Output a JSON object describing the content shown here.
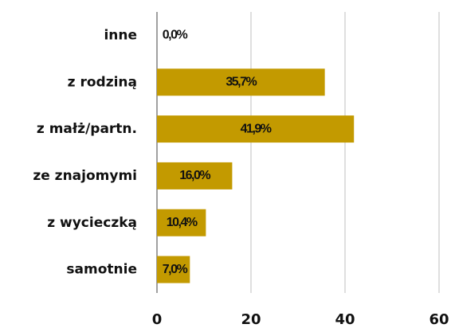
{
  "chart_data": {
    "type": "barh",
    "categories": [
      "inne",
      "z rodziną",
      "z małż/partn.",
      "ze znajomymi",
      "z wycieczką",
      "samotnie"
    ],
    "values": [
      0.0,
      35.7,
      41.9,
      16.0,
      10.4,
      7.0
    ],
    "value_labels": [
      "0,0%",
      "35,7%",
      "41,9%",
      "16,0%",
      "10,4%",
      "7,0%"
    ],
    "color": "#c39a00",
    "xlim": [
      0,
      60
    ],
    "xticks": [
      0,
      20,
      40,
      60
    ],
    "grid": true
  }
}
